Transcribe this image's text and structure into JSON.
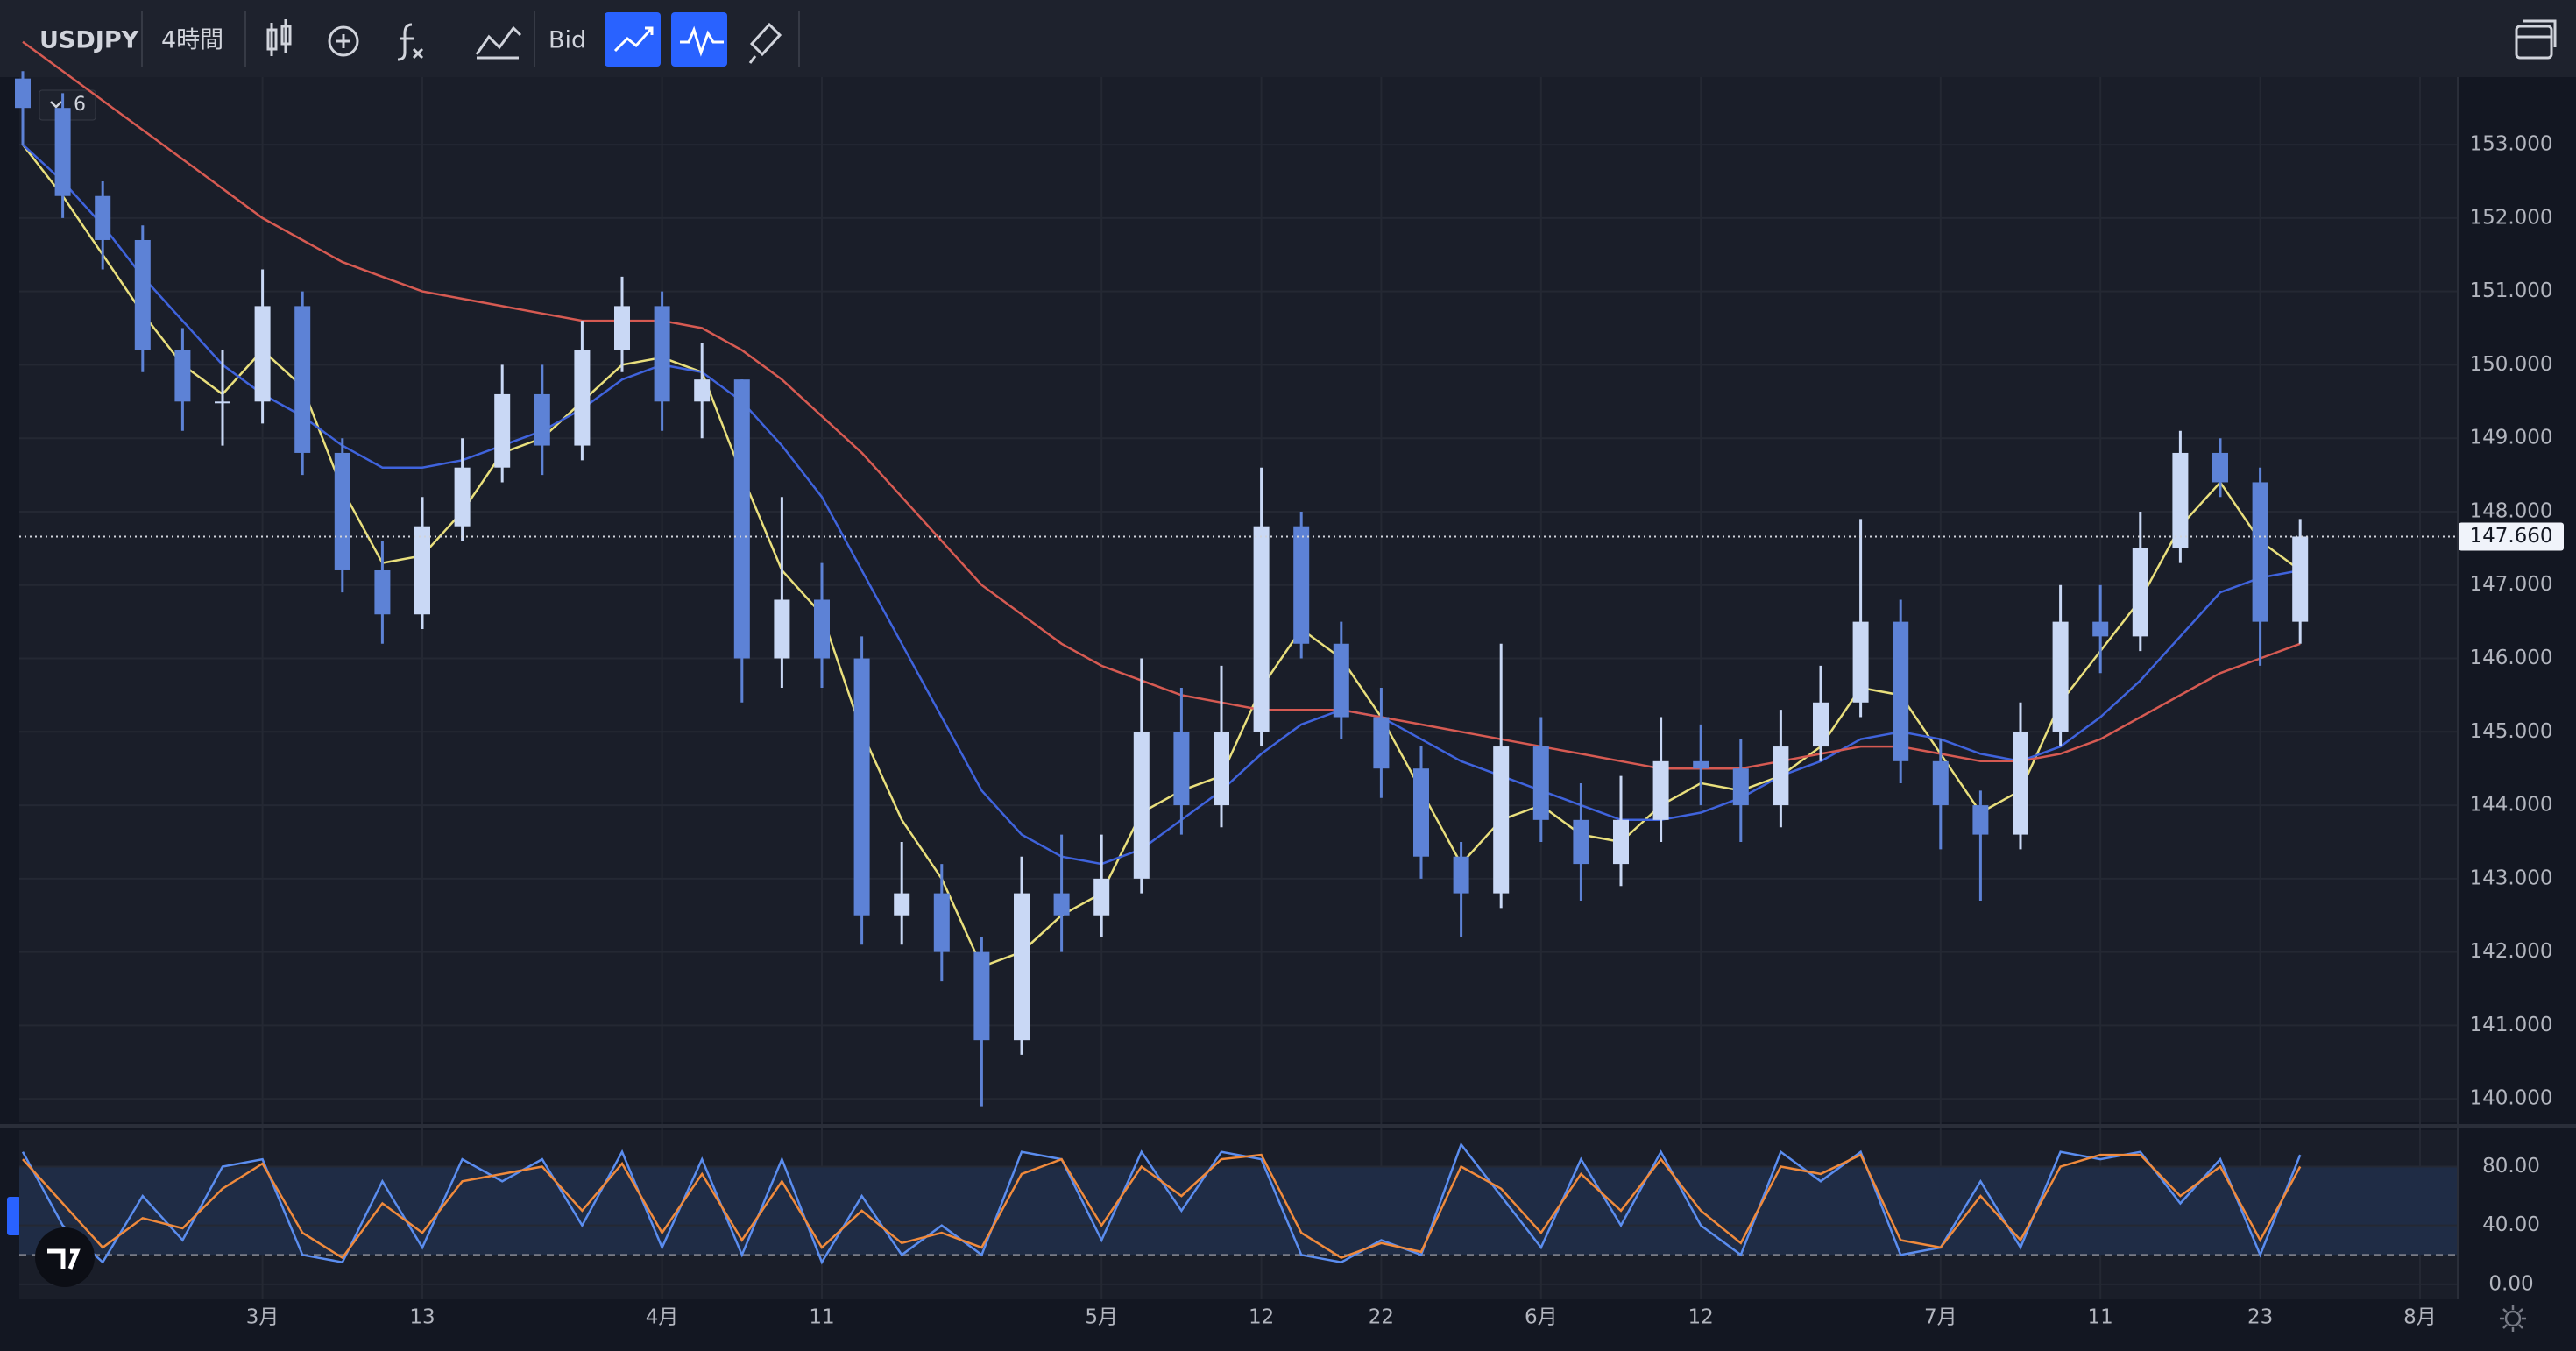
{
  "toolbar": {
    "symbol": "USDJPY",
    "interval": "4時間",
    "price_type": "Bid"
  },
  "chart_data": [
    {
      "type": "candlestick",
      "indicator_count": "6",
      "categories": [
        null,
        null,
        null,
        null,
        null,
        null,
        "3月",
        null,
        null,
        null,
        "13",
        null,
        null,
        null,
        null,
        null,
        "4月",
        null,
        null,
        null,
        "11",
        null,
        null,
        null,
        null,
        null,
        null,
        "5月",
        null,
        null,
        null,
        "12",
        null,
        null,
        "22",
        null,
        null,
        null,
        "6月",
        null,
        null,
        null,
        "12",
        null,
        null,
        null,
        null,
        null,
        "7月",
        null,
        null,
        null,
        "11",
        null,
        null,
        null,
        "23",
        null,
        null,
        null,
        "8月"
      ],
      "open": [
        153.9,
        153.5,
        152.3,
        151.7,
        150.2,
        149.5,
        149.5,
        150.8,
        148.8,
        147.2,
        146.6,
        147.8,
        148.6,
        149.6,
        148.9,
        150.2,
        150.8,
        149.5,
        149.8,
        146.0,
        146.8,
        146.0,
        142.5,
        142.8,
        142.0,
        140.8,
        142.8,
        142.5,
        143.0,
        145.0,
        144.0,
        145.0,
        147.8,
        146.2,
        145.2,
        144.5,
        143.3,
        142.8,
        144.8,
        143.8,
        143.2,
        143.8,
        144.6,
        144.5,
        144.0,
        144.8,
        145.4,
        146.5,
        144.6,
        144.0,
        143.6,
        145.0,
        146.5,
        146.3,
        147.5,
        148.8,
        148.4,
        146.5,
        null,
        null,
        null
      ],
      "high": [
        154.0,
        153.7,
        152.5,
        151.9,
        150.5,
        150.2,
        151.3,
        151.0,
        149.0,
        147.6,
        148.2,
        149.0,
        150.0,
        150.0,
        150.6,
        151.2,
        151.0,
        150.3,
        149.8,
        148.2,
        147.3,
        146.3,
        143.5,
        143.2,
        142.2,
        143.3,
        143.6,
        143.6,
        146.0,
        145.6,
        145.9,
        148.6,
        148.0,
        146.5,
        145.6,
        144.8,
        143.5,
        146.2,
        145.2,
        144.3,
        144.4,
        145.2,
        145.1,
        144.9,
        145.3,
        145.9,
        147.9,
        146.8,
        144.9,
        144.2,
        145.4,
        147.0,
        147.0,
        148.0,
        149.1,
        149.0,
        148.6,
        147.9,
        null,
        null,
        null
      ],
      "low": [
        153.0,
        152.0,
        151.3,
        149.9,
        149.1,
        148.9,
        149.2,
        148.5,
        146.9,
        146.2,
        146.4,
        147.6,
        148.4,
        148.5,
        148.7,
        149.9,
        149.1,
        149.0,
        145.4,
        145.6,
        145.6,
        142.1,
        142.1,
        141.6,
        139.9,
        140.6,
        142.0,
        142.2,
        142.8,
        143.6,
        143.7,
        144.8,
        146.0,
        144.9,
        144.1,
        143.0,
        142.2,
        142.6,
        143.5,
        142.7,
        142.9,
        143.5,
        144.0,
        143.5,
        143.7,
        144.6,
        145.2,
        144.3,
        143.4,
        142.7,
        143.4,
        144.8,
        145.8,
        146.1,
        147.3,
        148.2,
        145.9,
        146.2,
        null,
        null,
        null
      ],
      "close": [
        153.5,
        152.3,
        151.7,
        150.2,
        149.5,
        149.5,
        150.8,
        148.8,
        147.2,
        146.6,
        147.8,
        148.6,
        149.6,
        148.9,
        150.2,
        150.8,
        149.5,
        149.8,
        146.0,
        146.8,
        146.0,
        142.5,
        142.8,
        142.0,
        140.8,
        142.8,
        142.5,
        143.0,
        145.0,
        144.0,
        145.0,
        147.8,
        146.2,
        145.2,
        144.5,
        143.3,
        142.8,
        144.8,
        143.8,
        143.2,
        143.8,
        144.6,
        144.5,
        144.0,
        144.8,
        145.4,
        146.5,
        144.6,
        144.0,
        143.6,
        145.0,
        146.5,
        146.3,
        147.5,
        148.8,
        148.4,
        146.5,
        147.66,
        null,
        null,
        null
      ],
      "up_color": "#c9d8f5",
      "down_color": "#5d82d6",
      "series": [
        {
          "color": "#e9df7c",
          "values": [
            153.0,
            152.3,
            151.5,
            150.7,
            150.0,
            149.6,
            150.2,
            149.7,
            148.3,
            147.3,
            147.4,
            148.0,
            148.8,
            149.0,
            149.5,
            150.0,
            150.1,
            149.9,
            148.5,
            147.2,
            146.6,
            145.0,
            143.8,
            143.0,
            141.8,
            142.0,
            142.5,
            142.8,
            143.9,
            144.2,
            144.4,
            145.6,
            146.4,
            146.0,
            145.2,
            144.2,
            143.2,
            143.8,
            144.0,
            143.6,
            143.5,
            144.0,
            144.3,
            144.2,
            144.4,
            144.8,
            145.6,
            145.5,
            144.7,
            143.9,
            144.2,
            145.4,
            146.1,
            146.8,
            147.8,
            148.4,
            147.6,
            147.2,
            null,
            null,
            null
          ]
        },
        {
          "color": "#3f63dc",
          "values": [
            153.0,
            152.5,
            151.9,
            151.2,
            150.6,
            150.0,
            149.6,
            149.3,
            148.9,
            148.6,
            148.6,
            148.7,
            148.9,
            149.1,
            149.4,
            149.8,
            150.0,
            149.9,
            149.5,
            148.9,
            148.2,
            147.2,
            146.2,
            145.2,
            144.2,
            143.6,
            143.3,
            143.2,
            143.4,
            143.8,
            144.2,
            144.7,
            145.1,
            145.3,
            145.2,
            144.9,
            144.6,
            144.4,
            144.2,
            144.0,
            143.8,
            143.8,
            143.9,
            144.1,
            144.4,
            144.6,
            144.9,
            145.0,
            144.9,
            144.7,
            144.6,
            144.8,
            145.2,
            145.7,
            146.3,
            146.9,
            147.1,
            147.2,
            null,
            null,
            null
          ]
        },
        {
          "color": "#d65a52",
          "values": [
            154.4,
            154.0,
            153.6,
            153.2,
            152.8,
            152.4,
            152.0,
            151.7,
            151.4,
            151.2,
            151.0,
            150.9,
            150.8,
            150.7,
            150.6,
            150.6,
            150.6,
            150.5,
            150.2,
            149.8,
            149.3,
            148.8,
            148.2,
            147.6,
            147.0,
            146.6,
            146.2,
            145.9,
            145.7,
            145.5,
            145.4,
            145.3,
            145.3,
            145.3,
            145.2,
            145.1,
            145.0,
            144.9,
            144.8,
            144.7,
            144.6,
            144.5,
            144.5,
            144.5,
            144.6,
            144.7,
            144.8,
            144.8,
            144.7,
            144.6,
            144.6,
            144.7,
            144.9,
            145.2,
            145.5,
            145.8,
            146.0,
            146.2,
            null,
            null,
            null
          ]
        }
      ],
      "last_price": {
        "value": 147.66,
        "label": "147.660"
      },
      "ylim": [
        139.68,
        153.92
      ],
      "yticks": [
        {
          "value": 140,
          "label": "140.000"
        },
        {
          "value": 141,
          "label": "141.000"
        },
        {
          "value": 142,
          "label": "142.000"
        },
        {
          "value": 143,
          "label": "143.000"
        },
        {
          "value": 144,
          "label": "144.000"
        },
        {
          "value": 145,
          "label": "145.000"
        },
        {
          "value": 146,
          "label": "146.000"
        },
        {
          "value": 147,
          "label": "147.000"
        },
        {
          "value": 148,
          "label": "148.000"
        },
        {
          "value": 149,
          "label": "149.000"
        },
        {
          "value": 150,
          "label": "150.000"
        },
        {
          "value": 151,
          "label": "151.000"
        },
        {
          "value": 152,
          "label": "152.000"
        },
        {
          "value": 153,
          "label": "153.000"
        }
      ],
      "grid": true
    },
    {
      "type": "line",
      "series": [
        {
          "color": "#5b8def",
          "values": [
            90,
            40,
            15,
            60,
            30,
            80,
            85,
            20,
            15,
            70,
            25,
            85,
            70,
            85,
            40,
            90,
            25,
            85,
            20,
            85,
            15,
            60,
            20,
            40,
            20,
            90,
            85,
            30,
            90,
            50,
            90,
            85,
            20,
            15,
            30,
            20,
            95,
            60,
            25,
            85,
            40,
            90,
            40,
            20,
            90,
            70,
            90,
            20,
            25,
            70,
            25,
            90,
            85,
            90,
            55,
            85,
            20,
            88,
            null,
            null,
            null
          ]
        },
        {
          "color": "#f08a3c",
          "values": [
            85,
            55,
            25,
            45,
            38,
            65,
            82,
            35,
            18,
            55,
            35,
            70,
            75,
            80,
            50,
            82,
            35,
            75,
            30,
            70,
            25,
            50,
            28,
            35,
            25,
            75,
            85,
            40,
            80,
            60,
            85,
            88,
            35,
            18,
            28,
            22,
            80,
            65,
            35,
            75,
            50,
            85,
            50,
            28,
            80,
            75,
            88,
            30,
            25,
            60,
            30,
            80,
            88,
            88,
            60,
            80,
            30,
            80,
            null,
            null,
            null
          ]
        }
      ],
      "bands": [
        20,
        80
      ],
      "ylim": [
        -10.2,
        104.7
      ],
      "yticks": [
        {
          "value": 0,
          "label": "0.00"
        },
        {
          "value": 40,
          "label": "40.00"
        },
        {
          "value": 80,
          "label": "80.00"
        }
      ],
      "grid": true
    }
  ]
}
